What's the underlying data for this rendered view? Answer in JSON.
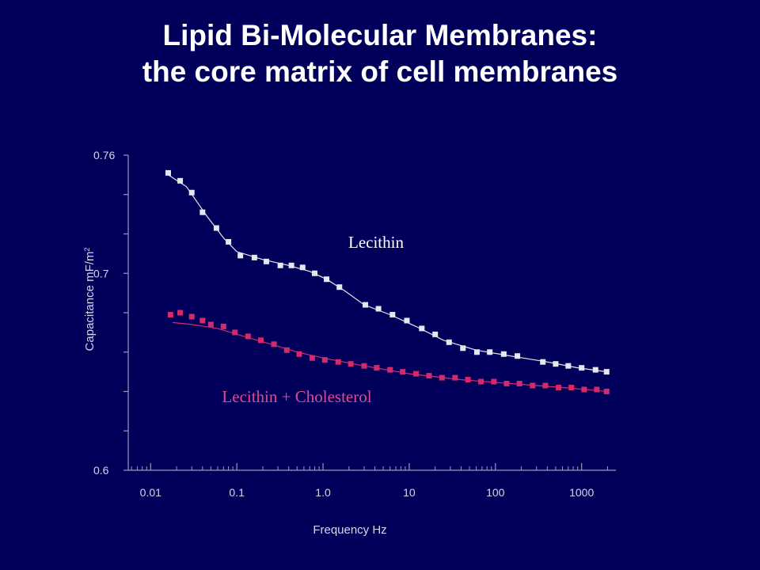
{
  "title": {
    "line1": "Lipid Bi-Molecular Membranes:",
    "line2": "the core matrix of cell membranes"
  },
  "colors": {
    "background": "#00005a",
    "axis": "#9a9ab8",
    "lecithin": "#e6e6ee",
    "cholesterol": "#d42a6a",
    "cholesterol_text": "#e04a90"
  },
  "chart_data": {
    "type": "scatter",
    "xlabel": "Frequency Hz",
    "ylabel": "Capacitance  mF/m",
    "ylabel_superscript": "2",
    "x_scale": "log",
    "xlim": [
      0.0055,
      2500
    ],
    "ylim": [
      0.6,
      0.76
    ],
    "x_ticks": [
      {
        "value": 0.01,
        "label": "0.01"
      },
      {
        "value": 0.1,
        "label": "0.1"
      },
      {
        "value": 1,
        "label": "1.0"
      },
      {
        "value": 10,
        "label": "10"
      },
      {
        "value": 100,
        "label": "100"
      },
      {
        "value": 1000,
        "label": "1000"
      }
    ],
    "y_ticks": [
      {
        "value": 0.76,
        "label": "0.76"
      },
      {
        "value": 0.7,
        "label": "0.7"
      },
      {
        "value": 0.6,
        "label": "0.6"
      }
    ],
    "y_minor_ticks": [
      0.74,
      0.72,
      0.68,
      0.66,
      0.64,
      0.62
    ],
    "grid": false,
    "series": [
      {
        "name": "Lecithin",
        "color": "#e6e6ee",
        "x": [
          0.016,
          0.022,
          0.03,
          0.04,
          0.058,
          0.08,
          0.11,
          0.16,
          0.22,
          0.32,
          0.43,
          0.58,
          0.8,
          1.1,
          1.55,
          3.1,
          4.4,
          6.4,
          9.4,
          14,
          20,
          29,
          42,
          61,
          86,
          125,
          180,
          355,
          500,
          700,
          1000,
          1450,
          1950
        ],
        "y": [
          0.751,
          0.747,
          0.741,
          0.731,
          0.723,
          0.716,
          0.709,
          0.708,
          0.706,
          0.704,
          0.704,
          0.703,
          0.7,
          0.697,
          0.693,
          0.684,
          0.682,
          0.679,
          0.676,
          0.672,
          0.669,
          0.665,
          0.662,
          0.66,
          0.66,
          0.659,
          0.658,
          0.655,
          0.654,
          0.653,
          0.652,
          0.651,
          0.65
        ],
        "fit_x": [
          0.016,
          0.026,
          0.045,
          0.07,
          0.1,
          0.2,
          0.4,
          0.7,
          1.1,
          1.8,
          3,
          6,
          12,
          25,
          60,
          150,
          400,
          900,
          1950
        ],
        "fit_y": [
          0.75,
          0.744,
          0.729,
          0.718,
          0.711,
          0.707,
          0.704,
          0.701,
          0.697,
          0.691,
          0.684,
          0.679,
          0.673,
          0.666,
          0.661,
          0.658,
          0.655,
          0.652,
          0.65
        ]
      },
      {
        "name": "Lecithin + Cholesterol",
        "color": "#d42a6a",
        "x": [
          0.017,
          0.022,
          0.03,
          0.04,
          0.05,
          0.07,
          0.095,
          0.135,
          0.19,
          0.27,
          0.38,
          0.53,
          0.75,
          1.05,
          1.5,
          2.1,
          3,
          4.2,
          6,
          8.4,
          12,
          17,
          24,
          34,
          48,
          68,
          96,
          135,
          190,
          270,
          380,
          540,
          760,
          1070,
          1500,
          1950
        ],
        "y": [
          0.679,
          0.68,
          0.678,
          0.676,
          0.674,
          0.673,
          0.67,
          0.668,
          0.666,
          0.664,
          0.661,
          0.659,
          0.657,
          0.656,
          0.655,
          0.654,
          0.653,
          0.652,
          0.651,
          0.65,
          0.649,
          0.648,
          0.647,
          0.647,
          0.646,
          0.645,
          0.645,
          0.644,
          0.644,
          0.643,
          0.643,
          0.642,
          0.642,
          0.641,
          0.641,
          0.64
        ],
        "fit_x": [
          0.018,
          0.03,
          0.06,
          0.12,
          0.25,
          0.5,
          1,
          3,
          10,
          40,
          150,
          600,
          1950
        ],
        "fit_y": [
          0.675,
          0.674,
          0.672,
          0.668,
          0.664,
          0.66,
          0.657,
          0.653,
          0.649,
          0.646,
          0.644,
          0.642,
          0.64
        ]
      }
    ],
    "annotations": [
      {
        "text": "Lecithin",
        "series": 0
      },
      {
        "text": "Lecithin + Cholesterol",
        "series": 1
      }
    ]
  }
}
